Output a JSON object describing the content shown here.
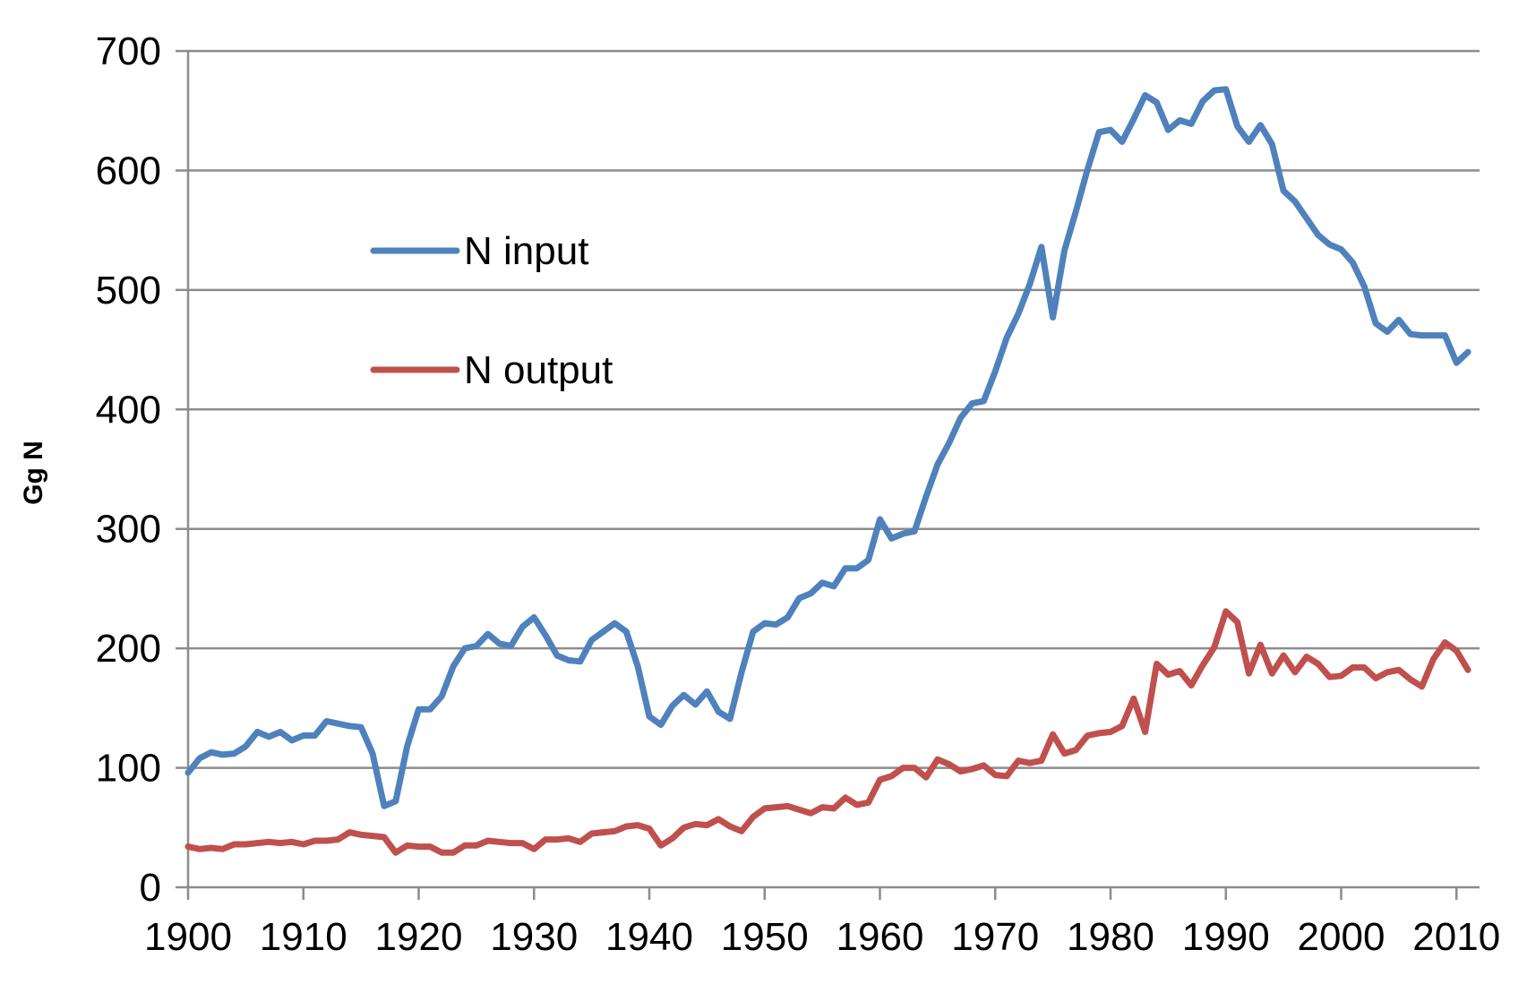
{
  "chart_data": {
    "type": "line",
    "title": "",
    "xlabel": "",
    "ylabel": "Gg N",
    "xlim": [
      1900,
      2012
    ],
    "ylim": [
      0,
      700
    ],
    "xticks": [
      1900,
      1910,
      1920,
      1930,
      1940,
      1950,
      1960,
      1970,
      1980,
      1990,
      2000,
      2010
    ],
    "yticks": [
      0,
      100,
      200,
      300,
      400,
      500,
      600,
      700
    ],
    "grid": "horizontal",
    "legend_position": "upper-left",
    "series": [
      {
        "name": "N input",
        "color": "#4f81bd",
        "x": [
          1900,
          1901,
          1902,
          1903,
          1904,
          1905,
          1906,
          1907,
          1908,
          1909,
          1910,
          1911,
          1912,
          1913,
          1914,
          1915,
          1916,
          1917,
          1918,
          1919,
          1920,
          1921,
          1922,
          1923,
          1924,
          1925,
          1926,
          1927,
          1928,
          1929,
          1930,
          1931,
          1932,
          1933,
          1934,
          1935,
          1936,
          1937,
          1938,
          1939,
          1940,
          1941,
          1942,
          1943,
          1944,
          1945,
          1946,
          1947,
          1948,
          1949,
          1950,
          1951,
          1952,
          1953,
          1954,
          1955,
          1956,
          1957,
          1958,
          1959,
          1960,
          1961,
          1962,
          1963,
          1964,
          1965,
          1966,
          1967,
          1968,
          1969,
          1970,
          1971,
          1972,
          1973,
          1974,
          1975,
          1976,
          1977,
          1978,
          1979,
          1980,
          1981,
          1982,
          1983,
          1984,
          1985,
          1986,
          1987,
          1988,
          1989,
          1990,
          1991,
          1992,
          1993,
          1994,
          1995,
          1996,
          1997,
          1998,
          1999,
          2000,
          2001,
          2002,
          2003,
          2004,
          2005,
          2006,
          2007,
          2008,
          2009,
          2010,
          2011
        ],
        "values": [
          96,
          108,
          113,
          111,
          112,
          118,
          130,
          126,
          130,
          123,
          127,
          127,
          139,
          137,
          135,
          134,
          112,
          68,
          72,
          118,
          149,
          149,
          160,
          185,
          200,
          202,
          212,
          204,
          202,
          218,
          226,
          211,
          194,
          190,
          189,
          207,
          214,
          221,
          214,
          185,
          143,
          136,
          152,
          161,
          153,
          164,
          147,
          141,
          180,
          214,
          221,
          220,
          226,
          242,
          246,
          255,
          252,
          267,
          267,
          274,
          308,
          292,
          296,
          298,
          327,
          354,
          372,
          393,
          405,
          407,
          432,
          460,
          480,
          505,
          536,
          477,
          533,
          566,
          601,
          632,
          634,
          624,
          643,
          663,
          657,
          634,
          642,
          639,
          658,
          667,
          668,
          637,
          624,
          638,
          622,
          583,
          574,
          560,
          546,
          538,
          534,
          523,
          503,
          472,
          465,
          475,
          463,
          462,
          462,
          462,
          439,
          448
        ]
      },
      {
        "name": "N output",
        "color": "#c0504d",
        "x": [
          1900,
          1901,
          1902,
          1903,
          1904,
          1905,
          1906,
          1907,
          1908,
          1909,
          1910,
          1911,
          1912,
          1913,
          1914,
          1915,
          1916,
          1917,
          1918,
          1919,
          1920,
          1921,
          1922,
          1923,
          1924,
          1925,
          1926,
          1927,
          1928,
          1929,
          1930,
          1931,
          1932,
          1933,
          1934,
          1935,
          1936,
          1937,
          1938,
          1939,
          1940,
          1941,
          1942,
          1943,
          1944,
          1945,
          1946,
          1947,
          1948,
          1949,
          1950,
          1951,
          1952,
          1953,
          1954,
          1955,
          1956,
          1957,
          1958,
          1959,
          1960,
          1961,
          1962,
          1963,
          1964,
          1965,
          1966,
          1967,
          1968,
          1969,
          1970,
          1971,
          1972,
          1973,
          1974,
          1975,
          1976,
          1977,
          1978,
          1979,
          1980,
          1981,
          1982,
          1983,
          1984,
          1985,
          1986,
          1987,
          1988,
          1989,
          1990,
          1991,
          1992,
          1993,
          1994,
          1995,
          1996,
          1997,
          1998,
          1999,
          2000,
          2001,
          2002,
          2003,
          2004,
          2005,
          2006,
          2007,
          2008,
          2009,
          2010,
          2011
        ],
        "values": [
          34,
          32,
          33,
          32,
          36,
          36,
          37,
          38,
          37,
          38,
          36,
          39,
          39,
          40,
          46,
          44,
          43,
          42,
          29,
          35,
          34,
          34,
          29,
          29,
          35,
          35,
          39,
          38,
          37,
          37,
          32,
          40,
          40,
          41,
          38,
          45,
          46,
          47,
          51,
          52,
          49,
          35,
          41,
          50,
          53,
          52,
          57,
          51,
          47,
          59,
          66,
          67,
          68,
          65,
          62,
          67,
          66,
          75,
          69,
          71,
          90,
          93,
          100,
          100,
          92,
          107,
          103,
          97,
          99,
          102,
          94,
          93,
          106,
          104,
          106,
          128,
          112,
          115,
          127,
          129,
          130,
          135,
          158,
          130,
          187,
          178,
          181,
          169,
          186,
          201,
          231,
          222,
          179,
          203,
          179,
          194,
          180,
          193,
          187,
          176,
          177,
          184,
          184,
          175,
          180,
          182,
          174,
          168,
          191,
          205,
          198,
          182
        ]
      }
    ]
  }
}
